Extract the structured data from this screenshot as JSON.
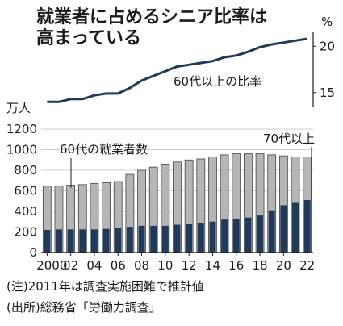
{
  "chart_data": {
    "title": [
      "就業者に占めるシニア比率は",
      "高まっている"
    ],
    "top": {
      "type": "line",
      "unit": "%",
      "label": "60代以上の比率",
      "y_ticks": [
        "20",
        "15"
      ],
      "ylim": [
        13.5,
        21.5
      ],
      "color": "#1f3a5a",
      "x": [
        2000,
        2001,
        2002,
        2003,
        2004,
        2005,
        2006,
        2007,
        2008,
        2009,
        2010,
        2011,
        2012,
        2013,
        2014,
        2015,
        2016,
        2017,
        2018,
        2019,
        2020,
        2021,
        2022
      ],
      "values": [
        14.0,
        14.0,
        14.3,
        14.3,
        14.7,
        14.9,
        14.9,
        15.5,
        16.3,
        16.8,
        17.3,
        17.8,
        18.0,
        18.2,
        18.4,
        18.8,
        19.0,
        19.4,
        19.9,
        20.2,
        20.4,
        20.6,
        20.8
      ]
    },
    "bottom": {
      "type": "bar",
      "unit": "万人",
      "ylim": [
        0,
        1200
      ],
      "y_ticks": [
        "0",
        "200",
        "400",
        "600",
        "800",
        "1000",
        "1200"
      ],
      "x_ticks": [
        "2000",
        "02",
        "04",
        "06",
        "08",
        "10",
        "12",
        "14",
        "16",
        "18",
        "20",
        "22"
      ],
      "categories": [
        2000,
        2001,
        2002,
        2003,
        2004,
        2005,
        2006,
        2007,
        2008,
        2009,
        2010,
        2011,
        2012,
        2013,
        2014,
        2015,
        2016,
        2017,
        2018,
        2019,
        2020,
        2021,
        2022
      ],
      "series": [
        {
          "name": "60代の就業者数",
          "color": "#b5b5b5",
          "values": [
            645,
            645,
            655,
            660,
            670,
            680,
            690,
            760,
            800,
            830,
            860,
            880,
            900,
            910,
            930,
            950,
            960,
            960,
            960,
            950,
            940,
            930,
            930
          ]
        },
        {
          "name": "70代以上",
          "color": "#1f3a5a",
          "values": [
            220,
            225,
            225,
            225,
            225,
            230,
            240,
            250,
            260,
            260,
            260,
            270,
            280,
            290,
            300,
            320,
            330,
            340,
            360,
            410,
            460,
            490,
            510
          ]
        }
      ]
    },
    "notes": [
      "(注)2011年は調査実施困難で推計値",
      "(出所)総務省「労働力調査」"
    ]
  }
}
